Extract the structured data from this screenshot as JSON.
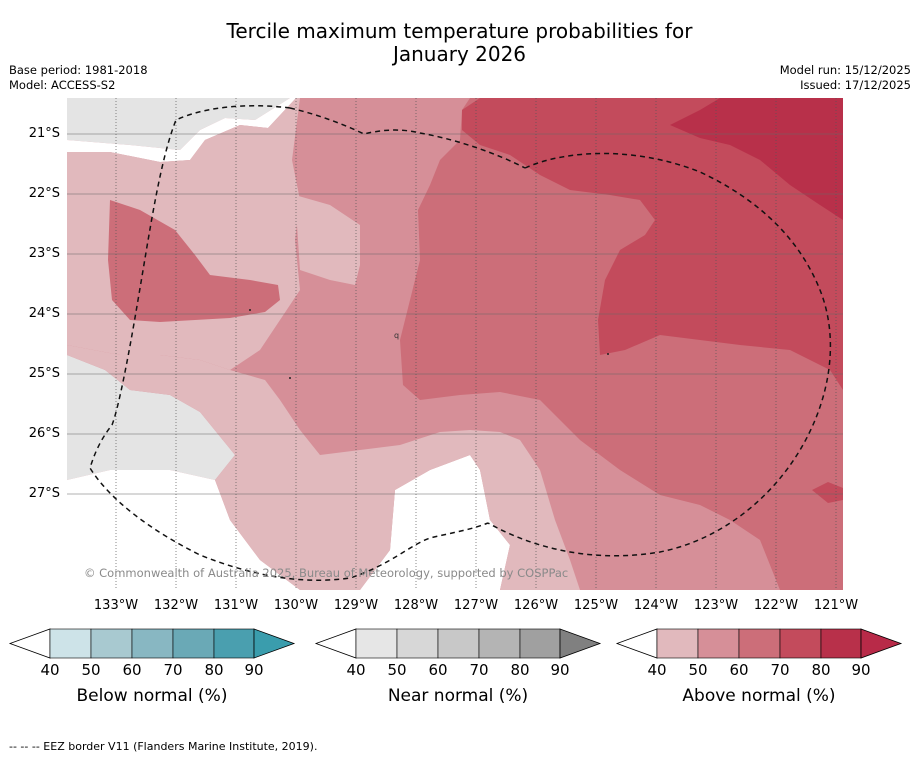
{
  "title": {
    "line1": "Tercile maximum temperature probabilities for",
    "line2": "January 2026"
  },
  "meta": {
    "base_period": "Base period: 1981-2018",
    "model": "Model: ACCESS-S2",
    "model_run": "Model run: 15/12/2025",
    "issued": "Issued: 17/12/2025"
  },
  "map": {
    "x_ticks": [
      "133°W",
      "132°W",
      "131°W",
      "130°W",
      "129°W",
      "128°W",
      "127°W",
      "126°W",
      "125°W",
      "124°W",
      "123°W",
      "122°W",
      "121°W"
    ],
    "y_ticks": [
      "21°S",
      "22°S",
      "23°S",
      "24°S",
      "25°S",
      "26°S",
      "27°S"
    ],
    "copyright": "© Commonwealth of Australia 2025, Bureau of Meteorology, supported by COSPPac",
    "marker": "q"
  },
  "colorbars": [
    {
      "label": "Below normal (%)",
      "ticks": [
        "40",
        "50",
        "60",
        "70",
        "80",
        "90"
      ],
      "colors": [
        "#cde3e8",
        "#a8c9d0",
        "#88b7c2",
        "#6aa9b6",
        "#4a9faf",
        "#3a9dad"
      ]
    },
    {
      "label": "Near normal (%)",
      "ticks": [
        "40",
        "50",
        "60",
        "70",
        "80",
        "90"
      ],
      "colors": [
        "#e6e6e6",
        "#d7d7d7",
        "#c8c8c8",
        "#b4b4b4",
        "#a0a0a0",
        "#808080"
      ]
    },
    {
      "label": "Above normal (%)",
      "ticks": [
        "40",
        "50",
        "60",
        "70",
        "80",
        "90"
      ],
      "colors": [
        "#e1b9bd",
        "#d68f98",
        "#cc6e79",
        "#c34b5c",
        "#b8304a",
        "#b82a48"
      ]
    }
  ],
  "footnote": "--  --  -- EEZ border V11 (Flanders Marine Institute, 2019)."
}
